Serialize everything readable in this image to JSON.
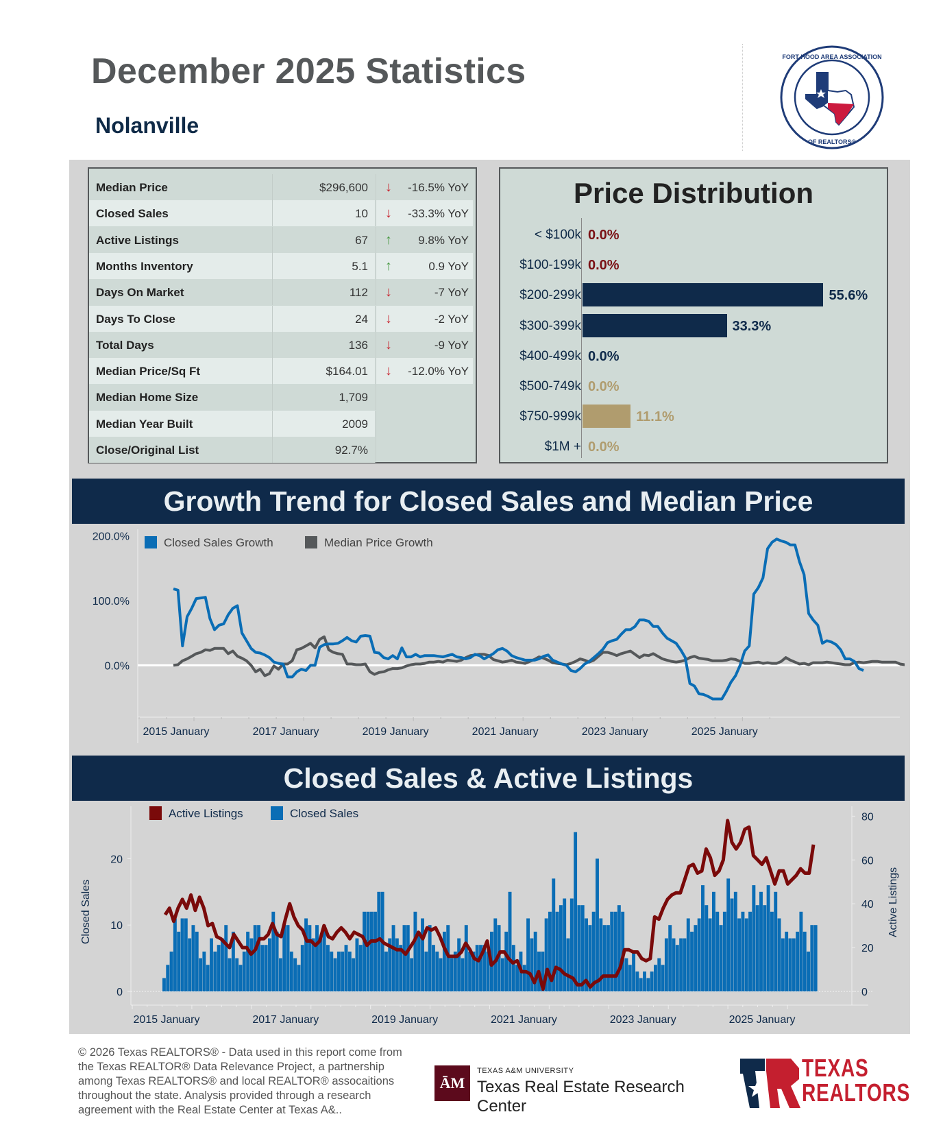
{
  "header": {
    "title": "December 2025 Statistics",
    "location": "Nolanville",
    "logo_label": "Fort Hood Area Association of Realtors"
  },
  "stats": [
    {
      "label": "Median Price",
      "value": "$296,600",
      "trend": "down",
      "yoy": "-16.5% YoY"
    },
    {
      "label": "Closed Sales",
      "value": "10",
      "trend": "down",
      "yoy": "-33.3% YoY"
    },
    {
      "label": "Active Listings",
      "value": "67",
      "trend": "up",
      "yoy": "9.8% YoY"
    },
    {
      "label": "Months Inventory",
      "value": "5.1",
      "trend": "up",
      "yoy": "0.9 YoY"
    },
    {
      "label": "Days On Market",
      "value": "112",
      "trend": "down",
      "yoy": "-7 YoY"
    },
    {
      "label": "Days To Close",
      "value": "24",
      "trend": "down",
      "yoy": "-2 YoY"
    },
    {
      "label": "Total Days",
      "value": "136",
      "trend": "down",
      "yoy": "-9 YoY"
    },
    {
      "label": "Median Price/Sq Ft",
      "value": "$164.01",
      "trend": "down",
      "yoy": "-12.0% YoY"
    },
    {
      "label": "Median Home Size",
      "value": "1,709",
      "trend": null,
      "yoy": null
    },
    {
      "label": "Median Year Built",
      "value": "2009",
      "trend": null,
      "yoy": null
    },
    {
      "label": "Close/Original List",
      "value": "92.7%",
      "trend": null,
      "yoy": null
    }
  ],
  "colors": {
    "navy": "#0f2a4a",
    "down_arrow": "#c8242f",
    "up_arrow": "#4a9a45",
    "low_tier": "#7a1014",
    "mid_tier": "#0f2a4a",
    "high_tier": "#b09c6e",
    "closed_sales": "#0a6db5",
    "median_price": "#55585a",
    "active_listings": "#7a0a0a"
  },
  "chart_data": [
    {
      "type": "bar",
      "title": "Price Distribution",
      "orientation": "horizontal",
      "categories": [
        "< $100k",
        "$100-199k",
        "$200-299k",
        "$300-399k",
        "$400-499k",
        "$500-749k",
        "$750-999k",
        "$1M +"
      ],
      "values": [
        0.0,
        0.0,
        55.6,
        33.3,
        0.0,
        0.0,
        11.1,
        0.0
      ],
      "labels": [
        "0.0%",
        "0.0%",
        "55.6%",
        "33.3%",
        "0.0%",
        "0.0%",
        "11.1%",
        "0.0%"
      ],
      "tiers": [
        "low",
        "low",
        "mid",
        "mid",
        "mid",
        "high",
        "high",
        "high"
      ],
      "xlim": [
        0,
        56
      ]
    },
    {
      "type": "line",
      "title": "Growth Trend for Closed Sales and Median Price",
      "xlabel": "",
      "ylabel": "",
      "x_start": "2015-01",
      "x_end": "2025-12",
      "x_tick_labels": [
        "2015 January",
        "2017 January",
        "2019 January",
        "2021 January",
        "2023 January",
        "2025 January"
      ],
      "y_tick_labels": [
        "200.0%",
        "100.0%",
        "0.0%"
      ],
      "ylim": [
        -80,
        210
      ],
      "legend": "top-left",
      "series": [
        {
          "name": "Closed Sales Growth",
          "values": [
            118,
            116,
            30,
            75,
            88,
            103,
            104,
            105,
            72,
            55,
            62,
            64,
            78,
            88,
            92,
            50,
            38,
            26,
            20,
            19,
            16,
            12,
            5,
            3,
            2,
            -18,
            -18,
            -10,
            -6,
            -8,
            0,
            0,
            28,
            32,
            33,
            33,
            34,
            38,
            43,
            38,
            36,
            45,
            46,
            45,
            20,
            19,
            12,
            10,
            15,
            10,
            27,
            13,
            13,
            17,
            13,
            15,
            15,
            15,
            14,
            13,
            15,
            17,
            13,
            12,
            10,
            12,
            17,
            15,
            10,
            14,
            18,
            24,
            26,
            22,
            15,
            12,
            10,
            8,
            8,
            8,
            10,
            14,
            16,
            8,
            5,
            2,
            0,
            -8,
            -10,
            -5,
            2,
            6,
            12,
            18,
            25,
            35,
            38,
            40,
            48,
            55,
            55,
            60,
            70,
            70,
            68,
            60,
            60,
            50,
            42,
            38,
            34,
            24,
            12,
            -28,
            -32,
            -44,
            -45,
            -48,
            -52,
            -52,
            -52,
            -40,
            -26,
            -16,
            0,
            22,
            30,
            110,
            120,
            135,
            180,
            190,
            195,
            192,
            190,
            186,
            186,
            160,
            140,
            80,
            70,
            62,
            34,
            38,
            36,
            32,
            24,
            10,
            10,
            6,
            -5,
            -8
          ]
        },
        {
          "name": "Median Price Growth",
          "values": [
            0,
            1,
            7,
            10,
            14,
            18,
            20,
            24,
            23,
            26,
            26,
            26,
            18,
            22,
            14,
            11,
            7,
            0,
            -10,
            -6,
            -16,
            -13,
            -1,
            -6,
            2,
            2,
            7,
            24,
            26,
            30,
            34,
            27,
            40,
            44,
            24,
            20,
            18,
            17,
            2,
            2,
            1,
            1,
            2,
            -10,
            -14,
            -11,
            -10,
            -7,
            -5,
            -5,
            -4,
            -1,
            1,
            2,
            2,
            3,
            5,
            5,
            6,
            5,
            8,
            7,
            6,
            8,
            12,
            15,
            16,
            17,
            17,
            15,
            9,
            7,
            5,
            6,
            8,
            5,
            4,
            3,
            6,
            9,
            13,
            11,
            8,
            4,
            3,
            2,
            1,
            3,
            6,
            10,
            8,
            5,
            8,
            14,
            20,
            20,
            18,
            15,
            18,
            20,
            22,
            17,
            12,
            16,
            15,
            18,
            14,
            10,
            8,
            6,
            5,
            6,
            8,
            12,
            14,
            11,
            10,
            9,
            7,
            7,
            7,
            8,
            10,
            9,
            6,
            3,
            3,
            4,
            5,
            3,
            4,
            3,
            3,
            6,
            12,
            8,
            5,
            2,
            3,
            1,
            4,
            4,
            4,
            5,
            4,
            3,
            2,
            1,
            1,
            4,
            5,
            4,
            5,
            6,
            6,
            5,
            5,
            5,
            5,
            2,
            1,
            1,
            1,
            0
          ]
        }
      ]
    },
    {
      "type": "bar+line",
      "title": "Closed Sales & Active Listings",
      "x_start": "2015-01",
      "x_end": "2025-12",
      "x_tick_labels": [
        "2015 January",
        "2017 January",
        "2019 January",
        "2021 January",
        "2023 January",
        "2025 January"
      ],
      "left_axis": {
        "label": "Closed Sales",
        "ticks": [
          "0",
          "10",
          "20"
        ],
        "lim": [
          0,
          25
        ]
      },
      "right_axis": {
        "label": "Active Listings",
        "ticks": [
          "0",
          "20",
          "40",
          "60",
          "80"
        ],
        "lim": [
          0,
          82
        ]
      },
      "legend": "top-left",
      "series": [
        {
          "name": "Closed Sales",
          "type": "bar",
          "axis": "left",
          "values": [
            2,
            4,
            6,
            11,
            9,
            11,
            11,
            8,
            10,
            9,
            5,
            6,
            4,
            8,
            6,
            7,
            8,
            10,
            5,
            9,
            5,
            4,
            6,
            9,
            8,
            10,
            10,
            7,
            7,
            8,
            12,
            9,
            5,
            10,
            10,
            6,
            5,
            4,
            7,
            11,
            10,
            8,
            10,
            8,
            10,
            7,
            6,
            5,
            6,
            6,
            7,
            6,
            5,
            8,
            7,
            12,
            12,
            12,
            12,
            15,
            15,
            6,
            8,
            10,
            8,
            7,
            10,
            10,
            5,
            12,
            9,
            11,
            6,
            10,
            7,
            6,
            5,
            9,
            10,
            5,
            6,
            8,
            5,
            10,
            6,
            6,
            7,
            7,
            7,
            6,
            9,
            11,
            10,
            5,
            9,
            15,
            7,
            4,
            6,
            4,
            11,
            8,
            9,
            6,
            6,
            11,
            12,
            17,
            12,
            13,
            14,
            8,
            14,
            24,
            13,
            13,
            11,
            10,
            12,
            20,
            11,
            10,
            10,
            12,
            12,
            13,
            12,
            5,
            4,
            6,
            3,
            2,
            3,
            2,
            3,
            4,
            5,
            4,
            8,
            10,
            8,
            7,
            8,
            8,
            11,
            9,
            10,
            11,
            16,
            13,
            11,
            15,
            12,
            10,
            12,
            17,
            14,
            15,
            11,
            12,
            11,
            12,
            16,
            13,
            15,
            13,
            16,
            12,
            15,
            11,
            8,
            9,
            8,
            8,
            9,
            12,
            9,
            6,
            10,
            10
          ]
        },
        {
          "name": "Active Listings",
          "type": "line",
          "axis": "right",
          "values": [
            35,
            38,
            32,
            38,
            42,
            38,
            44,
            37,
            43,
            38,
            30,
            31,
            25,
            24,
            22,
            20,
            26,
            23,
            20,
            20,
            17,
            19,
            24,
            24,
            26,
            31,
            26,
            25,
            33,
            40,
            34,
            30,
            28,
            23,
            23,
            21,
            23,
            30,
            25,
            24,
            27,
            29,
            27,
            24,
            27,
            26,
            25,
            21,
            23,
            23,
            24,
            22,
            21,
            20,
            19,
            19,
            17,
            20,
            23,
            27,
            24,
            29,
            28,
            29,
            25,
            20,
            16,
            16,
            16,
            18,
            22,
            19,
            15,
            14,
            18,
            23,
            12,
            14,
            18,
            18,
            15,
            13,
            14,
            9,
            9,
            8,
            4,
            9,
            1,
            10,
            5,
            11,
            10,
            8,
            7,
            6,
            3,
            3,
            5,
            2,
            4,
            5,
            7,
            7,
            7,
            7,
            11,
            19,
            19,
            18,
            18,
            15,
            14,
            15,
            34,
            33,
            38,
            42,
            44,
            45,
            45,
            51,
            57,
            58,
            54,
            55,
            65,
            61,
            53,
            55,
            60,
            78,
            68,
            65,
            68,
            74,
            75,
            62,
            60,
            58,
            61,
            55,
            49,
            55,
            55,
            49,
            51,
            53,
            56,
            54,
            54,
            67
          ]
        }
      ]
    }
  ],
  "growth_banner": "Growth Trend for Closed Sales and Median Price",
  "sales_banner": "Closed Sales & Active Listings",
  "footer": {
    "text": "© 2026 Texas REALTORS® - Data used in this report come from the Texas REALTOR® Data Relevance Project, a partnership among Texas REALTORS® and local REALTOR® assocaitions throughout the state. Analysis provided through a research agreement with the Real Estate Center at Texas A&..",
    "tamu_small": "TEXAS A&M UNIVERSITY",
    "tamu_big": "Texas Real Estate Research Center",
    "tamu_badge": "ĀM",
    "tr_line1": "TEXAS",
    "tr_line2": "REALTORS"
  }
}
